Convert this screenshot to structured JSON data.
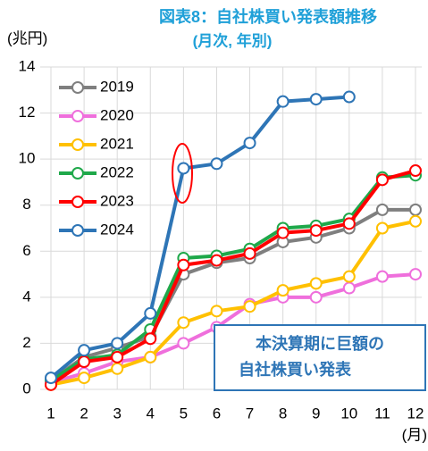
{
  "chart_data": {
    "type": "line",
    "title": "図表8：自社株買い発表額推移",
    "subtitle": "(月次, 年別)",
    "y_label": "(兆円)",
    "x_label": "(月)",
    "annotation": [
      "本決算期に巨額の",
      "自社株買い発表"
    ],
    "x": [
      1,
      2,
      3,
      4,
      5,
      6,
      7,
      8,
      9,
      10,
      11,
      12
    ],
    "xlim": [
      1,
      12
    ],
    "xticks": [
      1,
      2,
      3,
      4,
      5,
      6,
      7,
      8,
      9,
      10,
      11,
      12
    ],
    "ylim": [
      0,
      14
    ],
    "yticks": [
      0,
      2,
      4,
      6,
      8,
      10,
      12,
      14
    ],
    "grid": true,
    "legend": "upper left",
    "series": [
      {
        "name": "2019",
        "color": "#7f7f7f",
        "values": [
          0.4,
          1.4,
          1.8,
          2.3,
          5.0,
          5.5,
          5.7,
          6.4,
          6.6,
          7.0,
          7.8,
          7.8
        ]
      },
      {
        "name": "2020",
        "color": "#ef6fdc",
        "values": [
          0.3,
          0.7,
          1.2,
          1.4,
          2.0,
          2.7,
          3.7,
          4.0,
          4.0,
          4.4,
          4.9,
          5.0
        ]
      },
      {
        "name": "2021",
        "color": "#ffc000",
        "values": [
          0.2,
          0.5,
          0.9,
          1.4,
          2.9,
          3.4,
          3.6,
          4.3,
          4.6,
          4.9,
          7.0,
          7.3
        ]
      },
      {
        "name": "2022",
        "color": "#1fa84a",
        "values": [
          0.4,
          1.3,
          1.5,
          2.6,
          5.7,
          5.8,
          6.1,
          7.0,
          7.1,
          7.4,
          9.2,
          9.3
        ]
      },
      {
        "name": "2023",
        "color": "#ff0000",
        "values": [
          0.2,
          1.2,
          1.4,
          2.2,
          5.4,
          5.6,
          5.9,
          6.8,
          6.9,
          7.2,
          9.1,
          9.5
        ]
      },
      {
        "name": "2024",
        "color": "#2e75b6",
        "values": [
          0.5,
          1.7,
          2.0,
          3.3,
          9.6,
          9.8,
          10.7,
          12.5,
          12.6,
          12.7,
          null,
          null
        ]
      }
    ]
  }
}
